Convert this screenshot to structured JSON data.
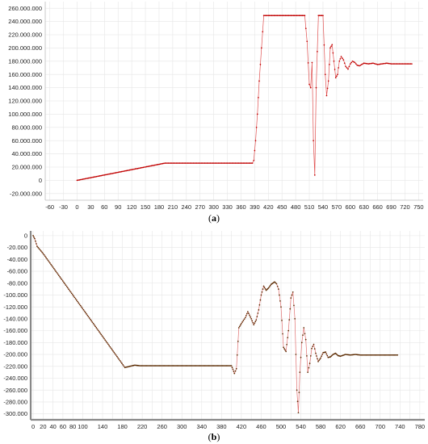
{
  "chart_data": [
    {
      "type": "line",
      "caption_open": "(",
      "caption_letter": "a",
      "caption_close": ")",
      "xlim": [
        -70,
        760
      ],
      "ylim": [
        -30000000,
        270000000
      ],
      "grid": true,
      "x_ticks": [
        -60,
        -30,
        0,
        30,
        60,
        90,
        120,
        150,
        180,
        210,
        240,
        270,
        300,
        330,
        360,
        390,
        420,
        450,
        480,
        510,
        540,
        570,
        600,
        630,
        660,
        690,
        720,
        750
      ],
      "y_ticks": [
        -20000000,
        0,
        20000000,
        40000000,
        60000000,
        80000000,
        100000000,
        120000000,
        140000000,
        160000000,
        180000000,
        200000000,
        220000000,
        240000000,
        260000000
      ],
      "y_tick_labels": [
        "-20.000.000",
        "0",
        "20.000.000",
        "40.000.000",
        "60.000.000",
        "80.000.000",
        "100.000.000",
        "120.000.000",
        "140.000.000",
        "160.000.000",
        "180.000.000",
        "200.000.000",
        "220.000.000",
        "240.000.000",
        "260.000.000"
      ],
      "series": [
        {
          "color": "#c00000",
          "x": [
            0,
            193,
            385,
            388,
            392,
            396,
            400,
            405,
            410,
            500,
            505,
            510,
            513,
            516,
            519,
            522,
            525,
            530,
            540,
            545,
            548,
            552,
            556,
            560,
            564,
            568,
            572,
            576,
            580,
            585,
            590,
            595,
            600,
            605,
            610,
            615,
            620,
            625,
            630,
            640,
            650,
            660,
            670,
            680,
            690,
            700,
            710,
            735
          ],
          "y": [
            0,
            26000000,
            26000000,
            30000000,
            60000000,
            100000000,
            150000000,
            200000000,
            249000000,
            249000000,
            210000000,
            145000000,
            140000000,
            178000000,
            60000000,
            8000000,
            140000000,
            249000000,
            249000000,
            160000000,
            128000000,
            150000000,
            200000000,
            205000000,
            180000000,
            155000000,
            160000000,
            180000000,
            187000000,
            182000000,
            172000000,
            168000000,
            176000000,
            180000000,
            178000000,
            174000000,
            173000000,
            175000000,
            177000000,
            176000000,
            177000000,
            175000000,
            176000000,
            177000000,
            176000000,
            176000000,
            176000000,
            176000000
          ]
        }
      ]
    },
    {
      "type": "line",
      "caption_open": "(",
      "caption_letter": "b",
      "caption_close": ")",
      "xlim": [
        -5,
        790
      ],
      "ylim": [
        -310,
        8
      ],
      "grid": true,
      "x_ticks": [
        0,
        20,
        40,
        60,
        80,
        100,
        120,
        140,
        160,
        180,
        200,
        220,
        240,
        260,
        280,
        300,
        320,
        340,
        360,
        380,
        400,
        420,
        440,
        460,
        480,
        500,
        520,
        540,
        560,
        580,
        600,
        620,
        640,
        660,
        680,
        700,
        720,
        740,
        760,
        780
      ],
      "x_tick_labels": [
        "0",
        "20",
        "40",
        "60",
        "80",
        "100",
        "",
        "140",
        "",
        "180",
        "",
        "220",
        "",
        "260",
        "",
        "300",
        "",
        "340",
        "",
        "380",
        "",
        "420",
        "",
        "460",
        "",
        "500",
        "",
        "540",
        "",
        "580",
        "",
        "620",
        "",
        "660",
        "",
        "700",
        "",
        "740",
        "",
        "780"
      ],
      "y_ticks": [
        0,
        -20,
        -40,
        -60,
        -80,
        -100,
        -120,
        -140,
        -160,
        -180,
        -200,
        -220,
        -240,
        -260,
        -280,
        -300
      ],
      "y_tick_labels": [
        "0",
        "-20.000",
        "-40.000",
        "-60.000",
        "-80.000",
        "-100.000",
        "-120.000",
        "-140.000",
        "-160.000",
        "-180.000",
        "-200.000",
        "-220.000",
        "-240.000",
        "-260.000",
        "-280.000",
        "-300.000"
      ],
      "series": [
        {
          "color": "#5a2a00",
          "x": [
            0,
            3,
            8,
            20,
            185,
            195,
            205,
            215,
            390,
            400,
            403,
            406,
            410,
            415,
            420,
            428,
            433,
            440,
            445,
            450,
            455,
            460,
            465,
            470,
            475,
            480,
            487,
            491,
            495,
            500,
            505,
            510,
            515,
            520,
            524,
            528,
            532,
            535,
            538,
            542,
            546,
            550,
            554,
            558,
            562,
            566,
            570,
            575,
            580,
            585,
            590,
            595,
            600,
            605,
            610,
            615,
            620,
            630,
            640,
            650,
            660,
            735
          ],
          "y": [
            0,
            -5,
            -18,
            -30,
            -222,
            -220,
            -218,
            -219,
            -219,
            -219,
            -225,
            -232,
            -224,
            -155,
            -148,
            -138,
            -128,
            -140,
            -150,
            -142,
            -125,
            -100,
            -85,
            -92,
            -88,
            -82,
            -78,
            -81,
            -90,
            -120,
            -188,
            -195,
            -160,
            -105,
            -95,
            -140,
            -260,
            -298,
            -230,
            -180,
            -155,
            -175,
            -230,
            -215,
            -190,
            -183,
            -198,
            -212,
            -206,
            -197,
            -196,
            -205,
            -204,
            -200,
            -198,
            -202,
            -203,
            -200,
            -201,
            -200,
            -201,
            -201
          ]
        }
      ]
    }
  ]
}
